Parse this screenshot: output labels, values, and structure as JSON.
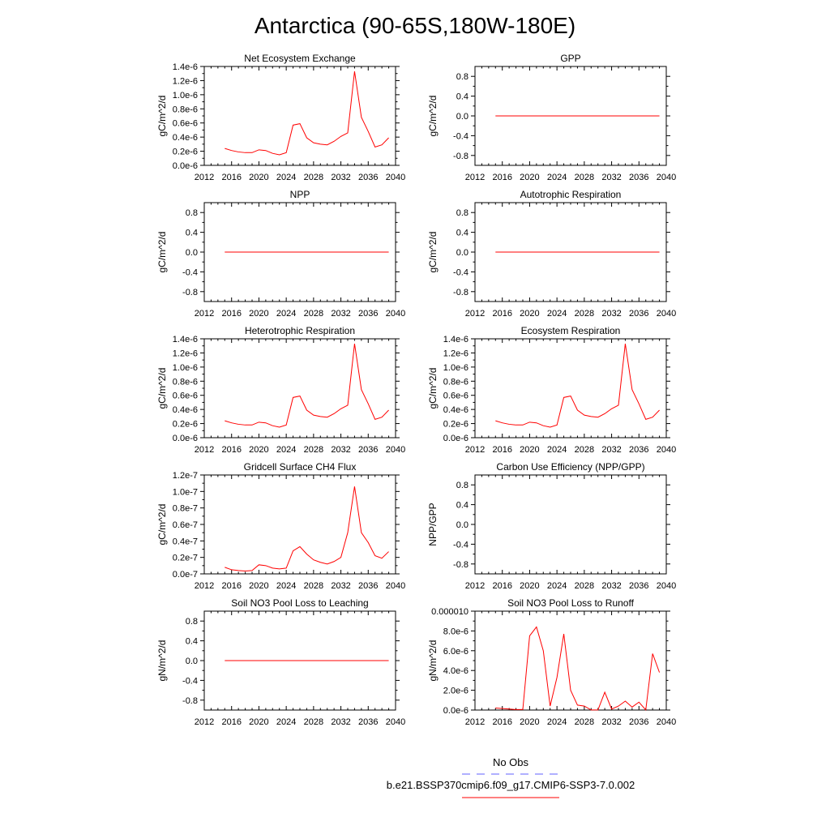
{
  "figure": {
    "title": "Antarctica (90-65S,180W-180E)",
    "legend": {
      "obs_label": "No Obs",
      "obs_color": "#6060ff",
      "model_label": "b.e21.BSSP370cmip6.f09_g17.CMIP6-SSP3-7.0.002",
      "model_color": "#ff0000"
    }
  },
  "chart_data": [
    {
      "type": "line",
      "title": "Net Ecosystem Exchange",
      "ylabel": "gC/m^2/d",
      "xlim": [
        2012,
        2040
      ],
      "xticks": [
        2012,
        2016,
        2020,
        2024,
        2028,
        2032,
        2036,
        2040
      ],
      "ylim": [
        0,
        1.4e-06
      ],
      "yticks": [
        "0.0e-6",
        "0.2e-6",
        "0.4e-6",
        "0.6e-6",
        "0.8e-6",
        "1.0e-6",
        "1.2e-6",
        "1.4e-6"
      ],
      "ytick_values": [
        0,
        2e-07,
        4e-07,
        6e-07,
        8e-07,
        1e-06,
        1.2e-06,
        1.4e-06
      ],
      "series": [
        {
          "color": "#ff0000",
          "x": [
            2015,
            2016,
            2017,
            2018,
            2019,
            2020,
            2021,
            2022,
            2023,
            2024,
            2025,
            2026,
            2027,
            2028,
            2029,
            2030,
            2031,
            2032,
            2033,
            2034,
            2035,
            2036,
            2037,
            2038,
            2039
          ],
          "y": [
            2.4e-07,
            2.1e-07,
            1.9e-07,
            1.8e-07,
            1.8e-07,
            2.2e-07,
            2.1e-07,
            1.7e-07,
            1.5e-07,
            1.8e-07,
            5.7e-07,
            5.9e-07,
            3.9e-07,
            3.2e-07,
            3e-07,
            2.9e-07,
            3.4e-07,
            4.1e-07,
            4.6e-07,
            1.33e-06,
            6.8e-07,
            4.8e-07,
            2.6e-07,
            2.9e-07,
            3.9e-07
          ]
        }
      ]
    },
    {
      "type": "line",
      "title": "GPP",
      "ylabel": "gC/m^2/d",
      "xlim": [
        2012,
        2040
      ],
      "xticks": [
        2012,
        2016,
        2020,
        2024,
        2028,
        2032,
        2036,
        2040
      ],
      "ylim": [
        -1,
        1
      ],
      "yticks": [
        "-0.8",
        "-0.4",
        "0.0",
        "0.4",
        "0.8"
      ],
      "ytick_values": [
        -0.8,
        -0.4,
        0,
        0.4,
        0.8
      ],
      "series": [
        {
          "color": "#ff0000",
          "x": [
            2015,
            2016,
            2017,
            2018,
            2019,
            2020,
            2021,
            2022,
            2023,
            2024,
            2025,
            2026,
            2027,
            2028,
            2029,
            2030,
            2031,
            2032,
            2033,
            2034,
            2035,
            2036,
            2037,
            2038,
            2039
          ],
          "y": [
            0,
            0,
            0,
            0,
            0,
            0,
            0,
            0,
            0,
            0,
            0,
            0,
            0,
            0,
            0,
            0,
            0,
            0,
            0,
            0,
            0,
            0,
            0,
            0,
            0
          ]
        }
      ]
    },
    {
      "type": "line",
      "title": "NPP",
      "ylabel": "gC/m^2/d",
      "xlim": [
        2012,
        2040
      ],
      "xticks": [
        2012,
        2016,
        2020,
        2024,
        2028,
        2032,
        2036,
        2040
      ],
      "ylim": [
        -1,
        1
      ],
      "yticks": [
        "-0.8",
        "-0.4",
        "0.0",
        "0.4",
        "0.8"
      ],
      "ytick_values": [
        -0.8,
        -0.4,
        0,
        0.4,
        0.8
      ],
      "series": [
        {
          "color": "#ff0000",
          "x": [
            2015,
            2016,
            2017,
            2018,
            2019,
            2020,
            2021,
            2022,
            2023,
            2024,
            2025,
            2026,
            2027,
            2028,
            2029,
            2030,
            2031,
            2032,
            2033,
            2034,
            2035,
            2036,
            2037,
            2038,
            2039
          ],
          "y": [
            0,
            0,
            0,
            0,
            0,
            0,
            0,
            0,
            0,
            0,
            0,
            0,
            0,
            0,
            0,
            0,
            0,
            0,
            0,
            0,
            0,
            0,
            0,
            0,
            0
          ]
        }
      ]
    },
    {
      "type": "line",
      "title": "Autotrophic Respiration",
      "ylabel": "gC/m^2/d",
      "xlim": [
        2012,
        2040
      ],
      "xticks": [
        2012,
        2016,
        2020,
        2024,
        2028,
        2032,
        2036,
        2040
      ],
      "ylim": [
        -1,
        1
      ],
      "yticks": [
        "-0.8",
        "-0.4",
        "0.0",
        "0.4",
        "0.8"
      ],
      "ytick_values": [
        -0.8,
        -0.4,
        0,
        0.4,
        0.8
      ],
      "series": [
        {
          "color": "#ff0000",
          "x": [
            2015,
            2016,
            2017,
            2018,
            2019,
            2020,
            2021,
            2022,
            2023,
            2024,
            2025,
            2026,
            2027,
            2028,
            2029,
            2030,
            2031,
            2032,
            2033,
            2034,
            2035,
            2036,
            2037,
            2038,
            2039
          ],
          "y": [
            0,
            0,
            0,
            0,
            0,
            0,
            0,
            0,
            0,
            0,
            0,
            0,
            0,
            0,
            0,
            0,
            0,
            0,
            0,
            0,
            0,
            0,
            0,
            0,
            0
          ]
        }
      ]
    },
    {
      "type": "line",
      "title": "Heterotrophic Respiration",
      "ylabel": "gC/m^2/d",
      "xlim": [
        2012,
        2040
      ],
      "xticks": [
        2012,
        2016,
        2020,
        2024,
        2028,
        2032,
        2036,
        2040
      ],
      "ylim": [
        0,
        1.4e-06
      ],
      "yticks": [
        "0.0e-6",
        "0.2e-6",
        "0.4e-6",
        "0.6e-6",
        "0.8e-6",
        "1.0e-6",
        "1.2e-6",
        "1.4e-6"
      ],
      "ytick_values": [
        0,
        2e-07,
        4e-07,
        6e-07,
        8e-07,
        1e-06,
        1.2e-06,
        1.4e-06
      ],
      "series": [
        {
          "color": "#ff0000",
          "x": [
            2015,
            2016,
            2017,
            2018,
            2019,
            2020,
            2021,
            2022,
            2023,
            2024,
            2025,
            2026,
            2027,
            2028,
            2029,
            2030,
            2031,
            2032,
            2033,
            2034,
            2035,
            2036,
            2037,
            2038,
            2039
          ],
          "y": [
            2.4e-07,
            2.1e-07,
            1.9e-07,
            1.8e-07,
            1.8e-07,
            2.2e-07,
            2.1e-07,
            1.7e-07,
            1.5e-07,
            1.8e-07,
            5.7e-07,
            5.9e-07,
            3.9e-07,
            3.2e-07,
            3e-07,
            2.9e-07,
            3.4e-07,
            4.1e-07,
            4.6e-07,
            1.33e-06,
            6.8e-07,
            4.8e-07,
            2.6e-07,
            2.9e-07,
            3.9e-07
          ]
        }
      ]
    },
    {
      "type": "line",
      "title": "Ecosystem Respiration",
      "ylabel": "gC/m^2/d",
      "xlim": [
        2012,
        2040
      ],
      "xticks": [
        2012,
        2016,
        2020,
        2024,
        2028,
        2032,
        2036,
        2040
      ],
      "ylim": [
        0,
        1.4e-06
      ],
      "yticks": [
        "0.0e-6",
        "0.2e-6",
        "0.4e-6",
        "0.6e-6",
        "0.8e-6",
        "1.0e-6",
        "1.2e-6",
        "1.4e-6"
      ],
      "ytick_values": [
        0,
        2e-07,
        4e-07,
        6e-07,
        8e-07,
        1e-06,
        1.2e-06,
        1.4e-06
      ],
      "series": [
        {
          "color": "#ff0000",
          "x": [
            2015,
            2016,
            2017,
            2018,
            2019,
            2020,
            2021,
            2022,
            2023,
            2024,
            2025,
            2026,
            2027,
            2028,
            2029,
            2030,
            2031,
            2032,
            2033,
            2034,
            2035,
            2036,
            2037,
            2038,
            2039
          ],
          "y": [
            2.4e-07,
            2.1e-07,
            1.9e-07,
            1.8e-07,
            1.8e-07,
            2.2e-07,
            2.1e-07,
            1.7e-07,
            1.5e-07,
            1.8e-07,
            5.7e-07,
            5.9e-07,
            3.9e-07,
            3.2e-07,
            3e-07,
            2.9e-07,
            3.4e-07,
            4.1e-07,
            4.6e-07,
            1.33e-06,
            6.8e-07,
            4.8e-07,
            2.6e-07,
            2.9e-07,
            3.9e-07
          ]
        }
      ]
    },
    {
      "type": "line",
      "title": "Gridcell Surface CH4 Flux",
      "ylabel": "gC/m^2/d",
      "xlim": [
        2012,
        2040
      ],
      "xticks": [
        2012,
        2016,
        2020,
        2024,
        2028,
        2032,
        2036,
        2040
      ],
      "ylim": [
        0,
        1.2e-07
      ],
      "yticks": [
        "0.0e-7",
        "0.2e-7",
        "0.4e-7",
        "0.6e-7",
        "0.8e-7",
        "1.0e-7",
        "1.2e-7"
      ],
      "ytick_values": [
        0,
        2e-08,
        4e-08,
        6e-08,
        8e-08,
        1e-07,
        1.2e-07
      ],
      "series": [
        {
          "color": "#ff0000",
          "x": [
            2015,
            2016,
            2017,
            2018,
            2019,
            2020,
            2021,
            2022,
            2023,
            2024,
            2025,
            2026,
            2027,
            2028,
            2029,
            2030,
            2031,
            2032,
            2033,
            2034,
            2035,
            2036,
            2037,
            2038,
            2039
          ],
          "y": [
            8e-09,
            5e-09,
            4e-09,
            3.5e-09,
            4e-09,
            1.1e-08,
            1e-08,
            7e-09,
            6e-09,
            7e-09,
            2.8e-08,
            3.3e-08,
            2.4e-08,
            1.7e-08,
            1.4e-08,
            1.2e-08,
            1.5e-08,
            2e-08,
            5e-08,
            1.06e-07,
            5e-08,
            3.8e-08,
            2.2e-08,
            1.9e-08,
            2.7e-08
          ]
        }
      ]
    },
    {
      "type": "line",
      "title": "Carbon Use Efficiency (NPP/GPP)",
      "ylabel": "NPP/GPP",
      "xlim": [
        2012,
        2040
      ],
      "xticks": [
        2012,
        2016,
        2020,
        2024,
        2028,
        2032,
        2036,
        2040
      ],
      "ylim": [
        -1,
        1
      ],
      "yticks": [
        "-0.8",
        "-0.4",
        "0.0",
        "0.4",
        "0.8"
      ],
      "ytick_values": [
        -0.8,
        -0.4,
        0,
        0.4,
        0.8
      ],
      "series": []
    },
    {
      "type": "line",
      "title": "Soil NO3 Pool Loss to Leaching",
      "ylabel": "gN/m^2/d",
      "xlim": [
        2012,
        2040
      ],
      "xticks": [
        2012,
        2016,
        2020,
        2024,
        2028,
        2032,
        2036,
        2040
      ],
      "ylim": [
        -1,
        1
      ],
      "yticks": [
        "-0.8",
        "-0.4",
        "0.0",
        "0.4",
        "0.8"
      ],
      "ytick_values": [
        -0.8,
        -0.4,
        0,
        0.4,
        0.8
      ],
      "series": [
        {
          "color": "#ff0000",
          "x": [
            2015,
            2016,
            2017,
            2018,
            2019,
            2020,
            2021,
            2022,
            2023,
            2024,
            2025,
            2026,
            2027,
            2028,
            2029,
            2030,
            2031,
            2032,
            2033,
            2034,
            2035,
            2036,
            2037,
            2038,
            2039
          ],
          "y": [
            0,
            0,
            0,
            0,
            0,
            0,
            0,
            0,
            0,
            0,
            0,
            0,
            0,
            0,
            0,
            0,
            0,
            0,
            0,
            0,
            0,
            0,
            0,
            0,
            0
          ]
        }
      ]
    },
    {
      "type": "line",
      "title": "Soil NO3 Pool Loss to Runoff",
      "ylabel": "gN/m^2/d",
      "xlim": [
        2012,
        2040
      ],
      "xticks": [
        2012,
        2016,
        2020,
        2024,
        2028,
        2032,
        2036,
        2040
      ],
      "ylim": [
        0,
        1e-05
      ],
      "yticks": [
        "0.0e-6",
        "2.0e-6",
        "4.0e-6",
        "6.0e-6",
        "8.0e-6",
        "0.000010"
      ],
      "ytick_values": [
        0,
        2e-06,
        4e-06,
        6e-06,
        8e-06,
        1e-05
      ],
      "series": [
        {
          "color": "#ff0000",
          "x": [
            2015,
            2016,
            2017,
            2018,
            2019,
            2020,
            2021,
            2022,
            2023,
            2024,
            2025,
            2026,
            2027,
            2028,
            2029,
            2030,
            2031,
            2032,
            2033,
            2034,
            2035,
            2036,
            2037,
            2038,
            2039
          ],
          "y": [
            2e-07,
            1.5e-07,
            1e-07,
            5e-08,
            5e-08,
            7.5e-06,
            8.4e-06,
            6e-06,
            4e-07,
            3.3e-06,
            7.7e-06,
            2e-06,
            5e-07,
            4e-07,
            1e-08,
            1e-08,
            1.8e-06,
            1e-07,
            4e-07,
            9e-07,
            3e-07,
            8e-07,
            1e-08,
            5.7e-06,
            3.8e-06
          ]
        }
      ]
    }
  ]
}
